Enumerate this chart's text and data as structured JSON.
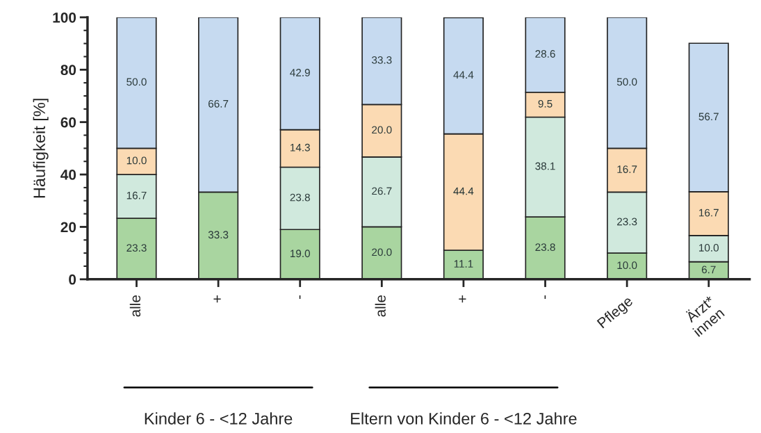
{
  "chart_data": {
    "type": "bar",
    "stacked": true,
    "ylabel": "Häufigkeit [%]",
    "categories": [
      "alle",
      "+",
      "-",
      "alle",
      "+",
      "-",
      "Pflege",
      "Ärzt*\ninnen"
    ],
    "series": [
      {
        "color": "#a9d5a0",
        "values": [
          23.3,
          33.3,
          19.0,
          20.0,
          11.1,
          23.8,
          10.0,
          6.7
        ],
        "value_labels": [
          "23.3",
          "33.3",
          "19.0",
          "20.0",
          "11.1",
          "23.8",
          "10.0",
          "6.7"
        ]
      },
      {
        "color": "#d0e9dd",
        "values": [
          16.7,
          null,
          23.8,
          26.7,
          null,
          38.1,
          23.3,
          10.0
        ],
        "value_labels": [
          "16.7",
          null,
          "23.8",
          "26.7",
          null,
          "38.1",
          "23.3",
          "10.0"
        ]
      },
      {
        "color": "#fbdab3",
        "values": [
          10.0,
          null,
          14.3,
          20.0,
          44.4,
          9.5,
          16.7,
          16.7
        ],
        "value_labels": [
          "10.0",
          null,
          "14.3",
          "20.0",
          "44.4",
          "9.5",
          "16.7",
          "16.7"
        ]
      },
      {
        "color": "#c6daf0",
        "values": [
          50.0,
          66.7,
          42.9,
          33.3,
          44.4,
          28.6,
          50.0,
          56.7
        ],
        "value_labels": [
          "50.0",
          "66.7",
          "42.9",
          "33.3",
          "44.4",
          "28.6",
          "50.0",
          "56.7"
        ]
      }
    ],
    "ylim": [
      0,
      100
    ],
    "yticks": [
      0,
      20,
      40,
      60,
      80,
      100
    ],
    "grid": false,
    "legend": false,
    "annotations": [
      "Kinder 6 - <12 Jahre",
      "Eltern von Kinder 6 - <12 Jahre"
    ]
  }
}
